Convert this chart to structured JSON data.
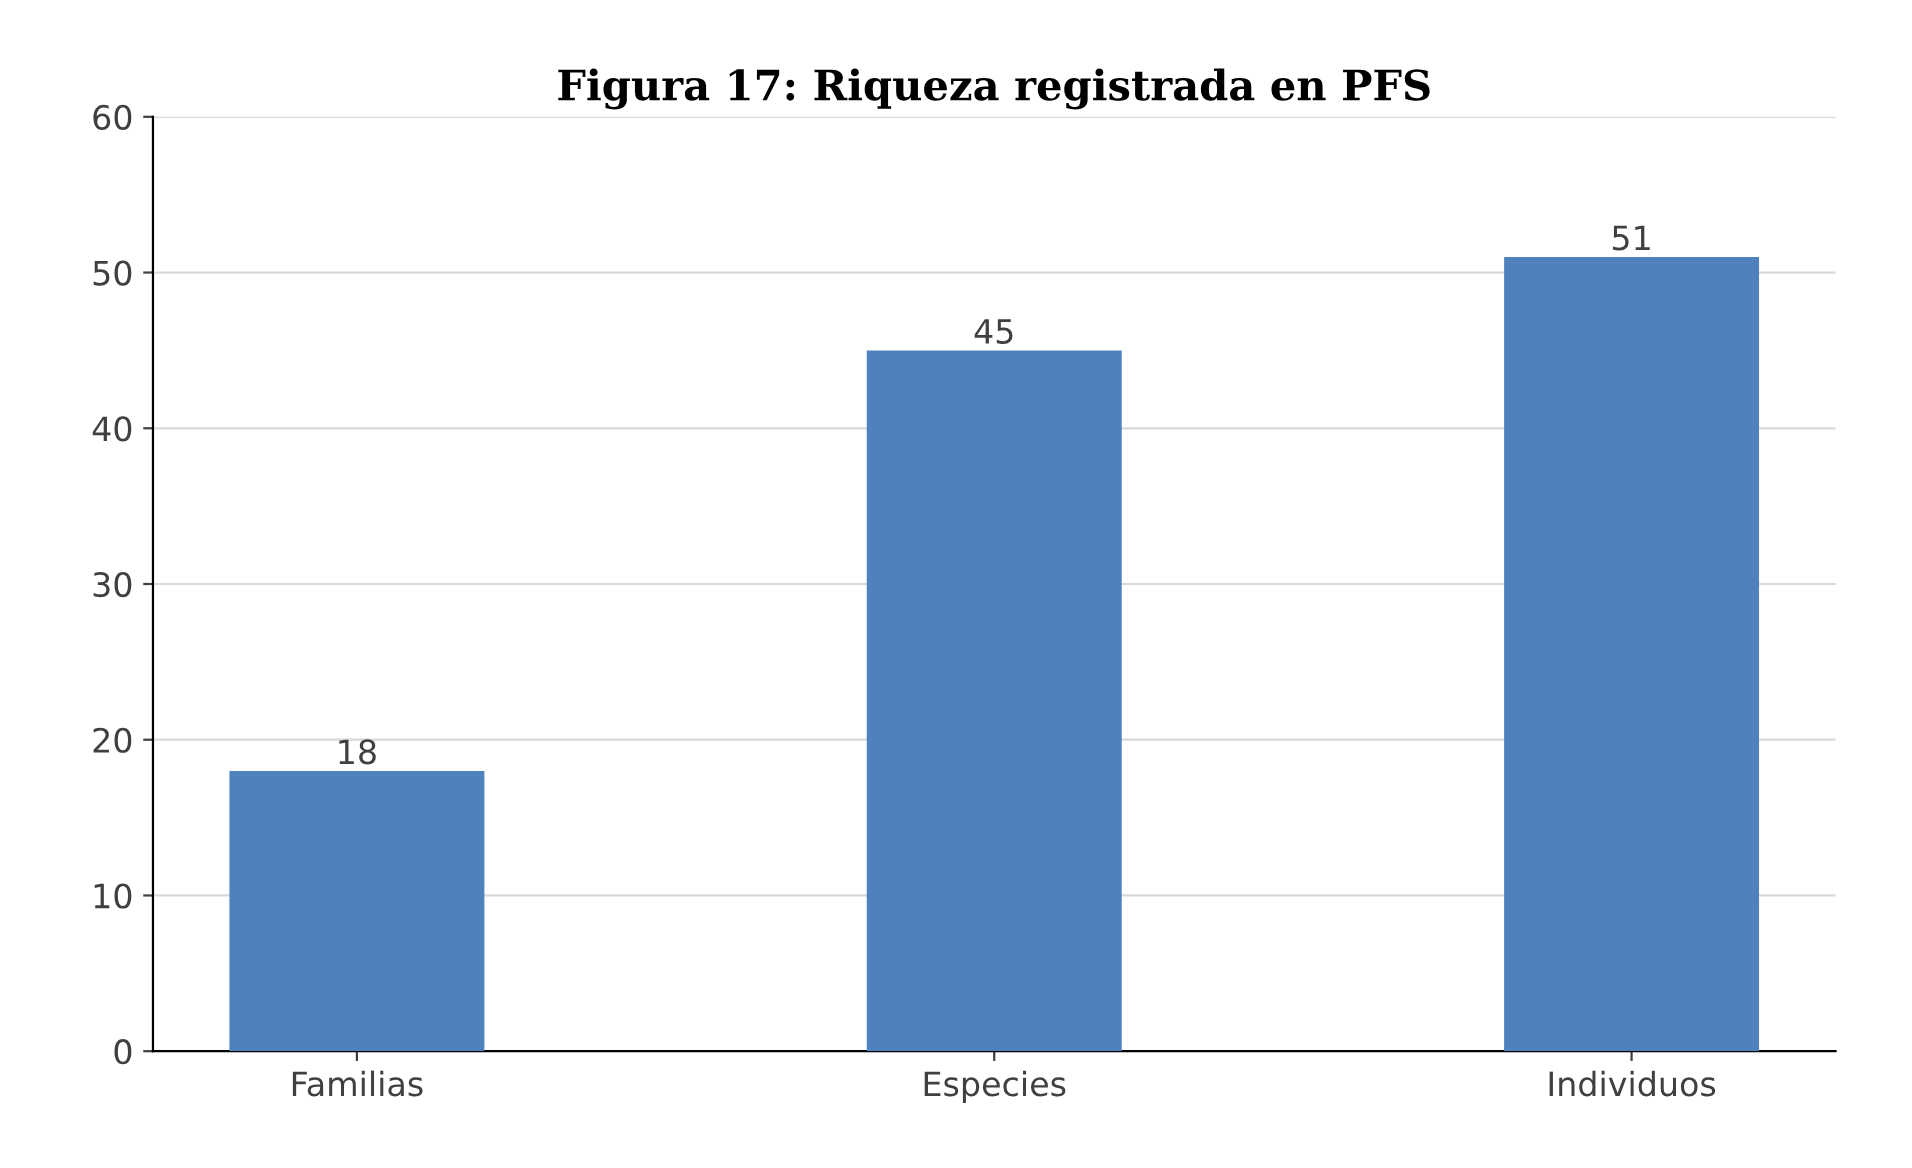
{
  "chart_data": {
    "type": "bar",
    "title": "Figura 17: Riqueza registrada en PFS",
    "categories": [
      "Familias",
      "Especies",
      "Individuos"
    ],
    "values": [
      18,
      45,
      51
    ],
    "color": "#4f81bd",
    "ylim": [
      0,
      60
    ],
    "yticks": [
      0,
      10,
      20,
      30,
      40,
      50,
      60
    ],
    "grid": "y",
    "data_labels": true
  }
}
